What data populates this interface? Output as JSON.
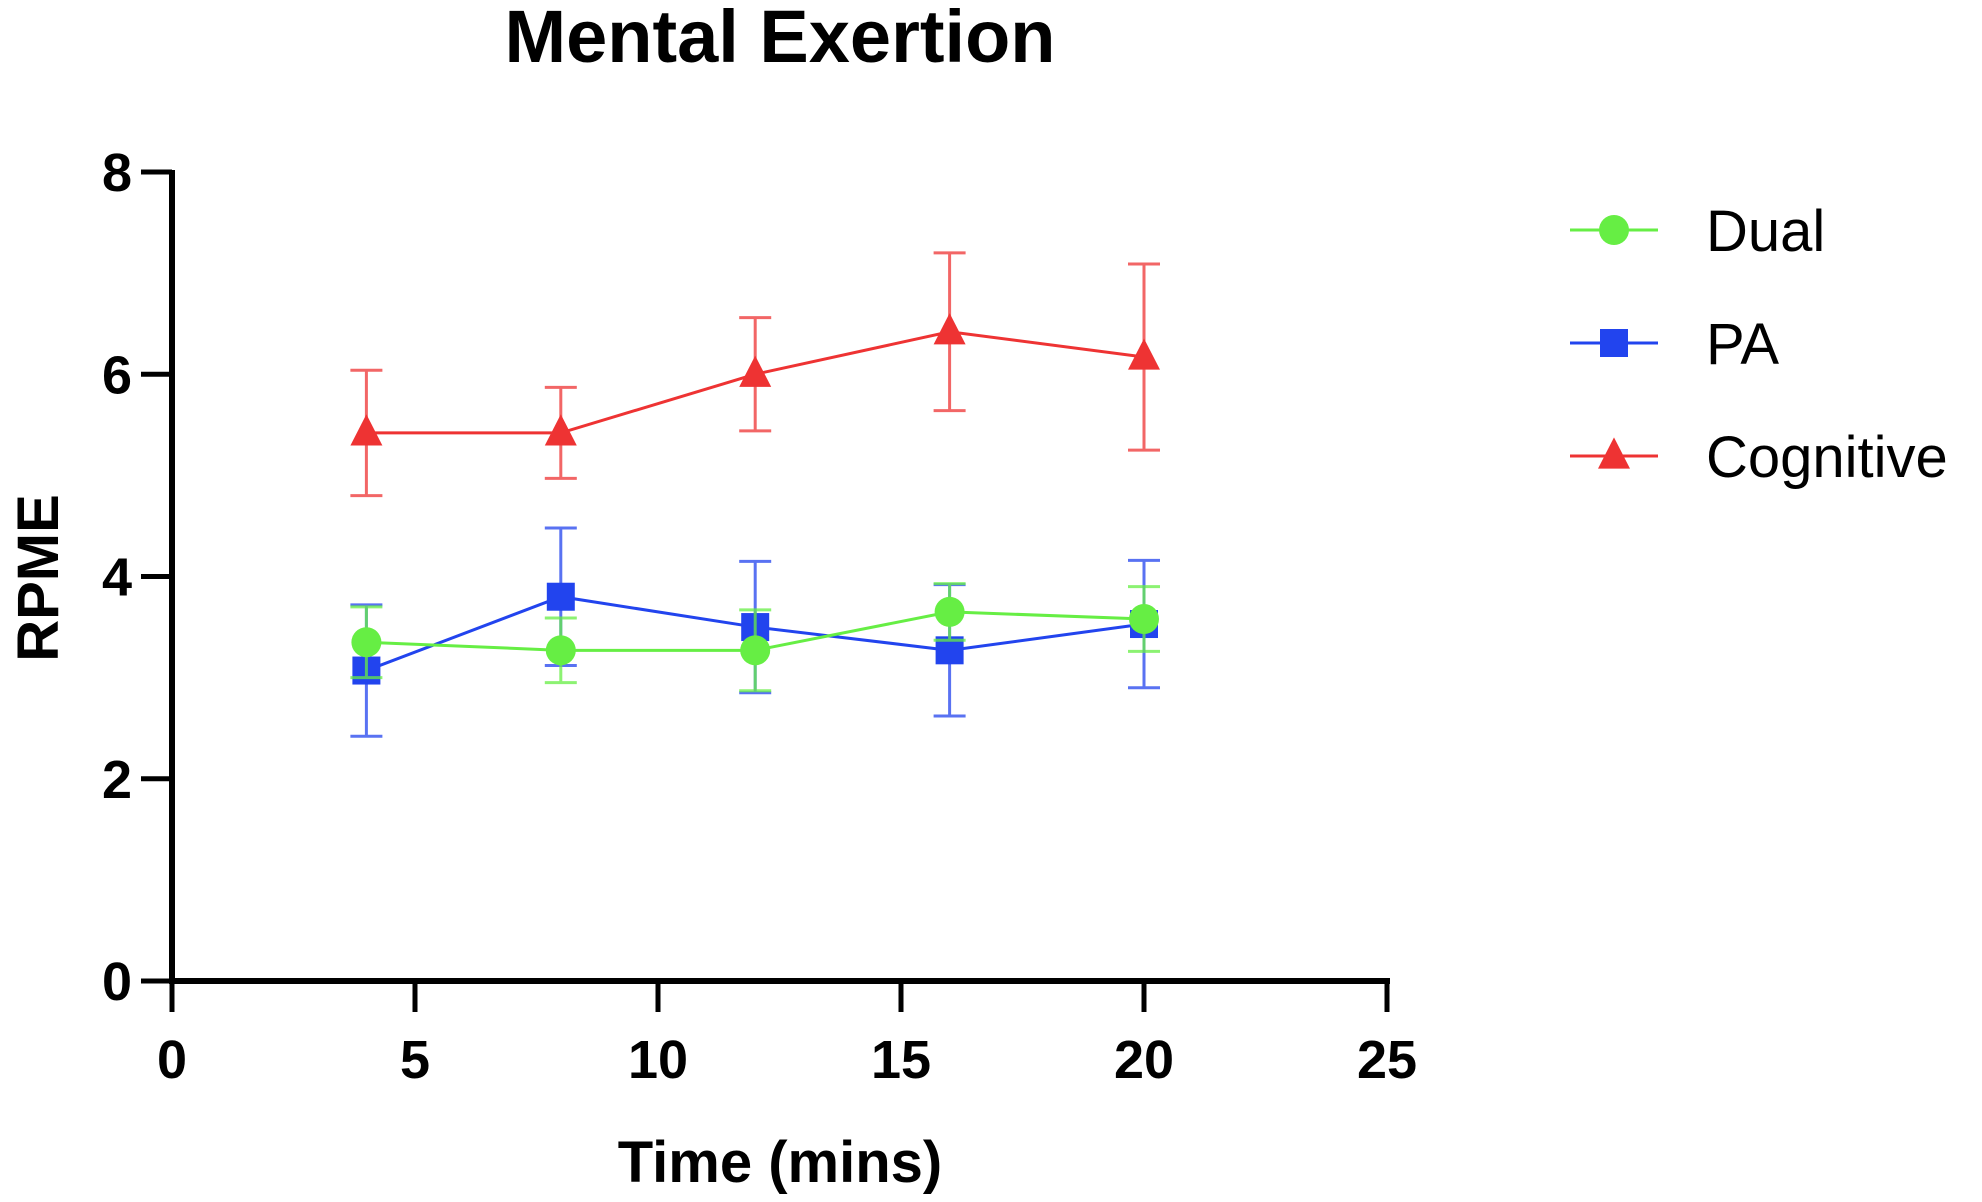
{
  "chart_data": {
    "type": "line",
    "title": "Mental Exertion",
    "xlabel": "Time (mins)",
    "ylabel": "RPME",
    "xlim": [
      0,
      25
    ],
    "ylim": [
      0,
      8
    ],
    "xticks": [
      0,
      5,
      10,
      15,
      20,
      25
    ],
    "yticks": [
      0,
      2,
      4,
      6,
      8
    ],
    "x": [
      4,
      8,
      12,
      16,
      20
    ],
    "grid": false,
    "legend_position": "right",
    "series": [
      {
        "name": "Dual",
        "marker": "circle",
        "color": "#66ee44",
        "values": [
          3.35,
          3.27,
          3.27,
          3.65,
          3.58
        ],
        "error": [
          0.35,
          0.32,
          0.4,
          0.28,
          0.32
        ]
      },
      {
        "name": "PA",
        "marker": "square",
        "color": "#2244ee",
        "values": [
          3.07,
          3.8,
          3.5,
          3.27,
          3.53
        ],
        "error": [
          0.65,
          0.68,
          0.65,
          0.65,
          0.63
        ]
      },
      {
        "name": "Cognitive",
        "marker": "triangle",
        "color": "#ee3333",
        "values": [
          5.42,
          5.42,
          6.0,
          6.42,
          6.17
        ],
        "error": [
          0.62,
          0.45,
          0.56,
          0.78,
          0.92
        ]
      }
    ]
  }
}
